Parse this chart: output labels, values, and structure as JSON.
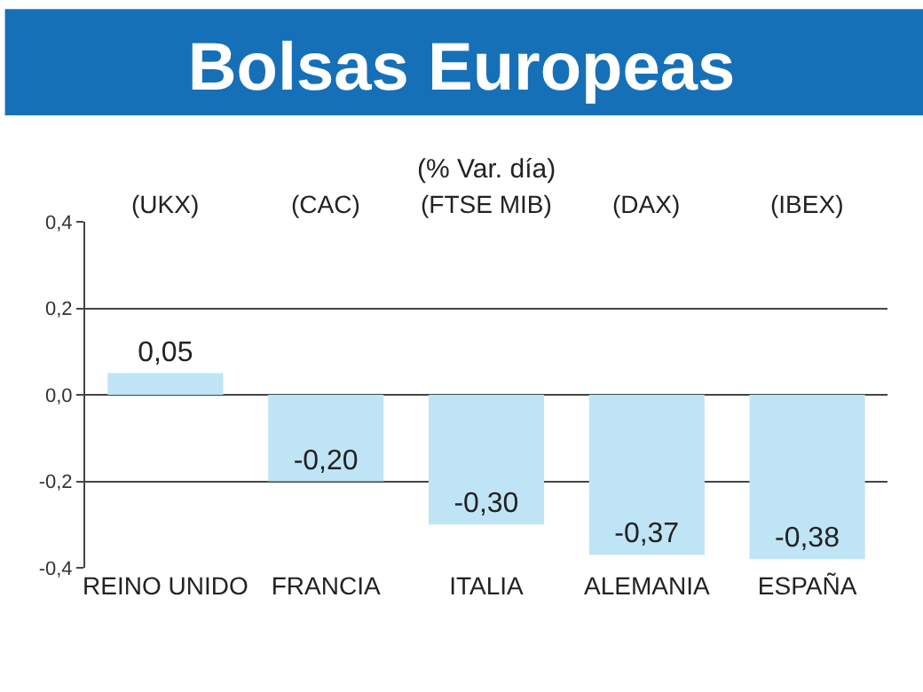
{
  "chart_data": {
    "type": "bar",
    "title": "Bolsas Europeas",
    "subtitle": "(% Var. día)",
    "categories": [
      "REINO UNIDO",
      "FRANCIA",
      "ITALIA",
      "ALEMANIA",
      "ESPAÑA"
    ],
    "values": [
      0.05,
      -0.2,
      -0.3,
      -0.37,
      -0.38
    ],
    "value_labels": [
      "0,05",
      "-0,20",
      "-0,30",
      "-0,37",
      "-0,38"
    ],
    "color": "#bfe4f6",
    "ylim": [
      -0.4,
      0.4
    ],
    "yticks": [
      {
        "value": 0.4,
        "label": "0,4"
      },
      {
        "value": 0.2,
        "label": "0,2"
      },
      {
        "value": 0.0,
        "label": "0,0"
      },
      {
        "value": -0.2,
        "label": "-0,2"
      },
      {
        "value": -0.4,
        "label": "-0,4"
      }
    ],
    "grid": "y",
    "annotations": [
      "(UKX)",
      "(CAC)",
      "(FTSE MIB)",
      "(DAX)",
      "(IBEX)"
    ]
  }
}
